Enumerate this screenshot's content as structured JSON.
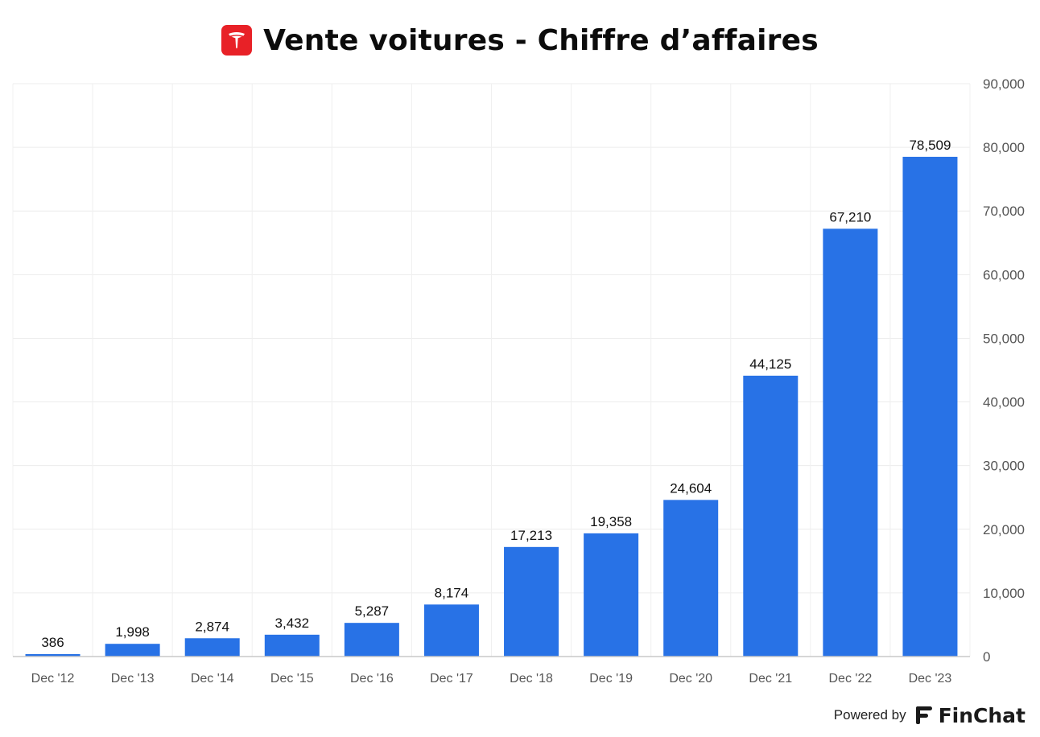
{
  "header": {
    "title": "Vente voitures - Chiffre d’affaires",
    "logo_icon": "tesla-logo-icon",
    "logo_color": "#e82127"
  },
  "chart_data": {
    "type": "bar",
    "title": "Vente voitures - Chiffre d’affaires",
    "categories": [
      "Dec '12",
      "Dec '13",
      "Dec '14",
      "Dec '15",
      "Dec '16",
      "Dec '17",
      "Dec '18",
      "Dec '19",
      "Dec '20",
      "Dec '21",
      "Dec '22",
      "Dec '23"
    ],
    "values": [
      386,
      1998,
      2874,
      3432,
      5287,
      8174,
      17213,
      19358,
      24604,
      44125,
      67210,
      78509
    ],
    "data_labels": [
      "386",
      "1,998",
      "2,874",
      "3,432",
      "5,287",
      "8,174",
      "17,213",
      "19,358",
      "24,604",
      "44,125",
      "67,210",
      "78,509"
    ],
    "y_ticks": [
      0,
      10000,
      20000,
      30000,
      40000,
      50000,
      60000,
      70000,
      80000,
      90000
    ],
    "y_tick_labels": [
      "0",
      "10,000",
      "20,000",
      "30,000",
      "40,000",
      "50,000",
      "60,000",
      "70,000",
      "80,000",
      "90,000"
    ],
    "ylim": [
      0,
      90000
    ],
    "y_axis_side": "right",
    "grid": true,
    "bar_color": "#2872e6",
    "xlabel": "",
    "ylabel": ""
  },
  "footer": {
    "powered_by": "Powered by",
    "brand": "FinChat",
    "brand_icon": "finchat-logo-icon"
  }
}
